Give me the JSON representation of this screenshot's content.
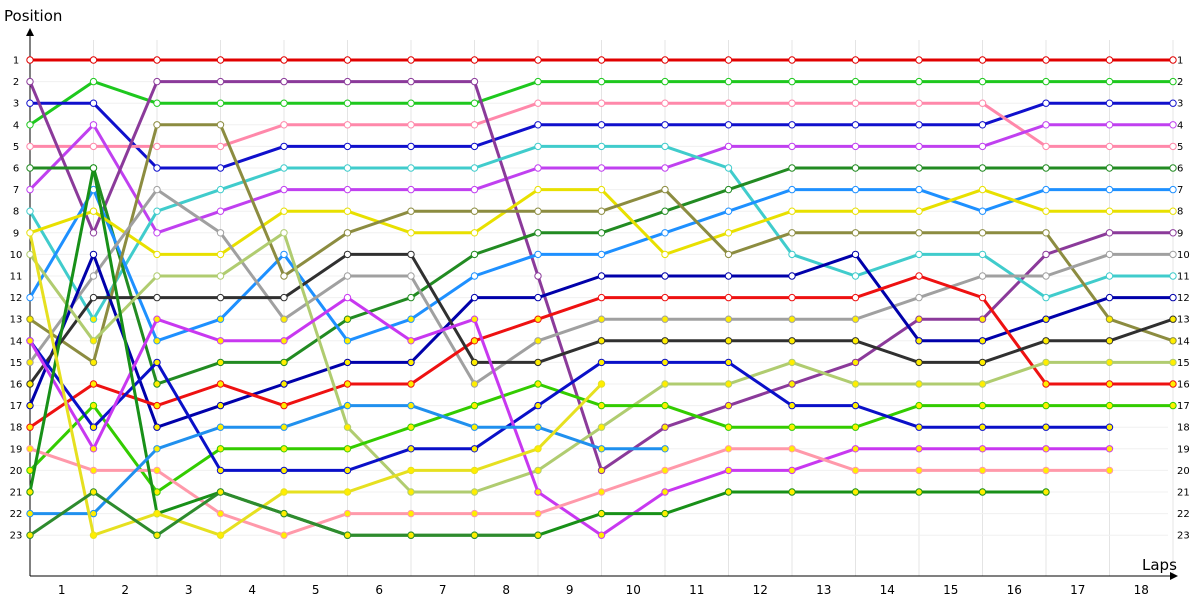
{
  "chart_data": {
    "type": "line",
    "title": "",
    "xlabel": "Laps",
    "ylabel": "Position",
    "x_ticks": [
      "1",
      "2",
      "3",
      "4",
      "5",
      "6",
      "7",
      "8",
      "9",
      "10",
      "11",
      "12",
      "13",
      "14",
      "15",
      "16",
      "17",
      "18"
    ],
    "y_ticks": [
      "1",
      "2",
      "3",
      "4",
      "5",
      "6",
      "7",
      "8",
      "9",
      "10",
      "11",
      "12",
      "13",
      "14",
      "15",
      "16",
      "17",
      "18",
      "19",
      "20",
      "21",
      "22",
      "23"
    ],
    "laps": [
      0,
      1,
      2,
      3,
      4,
      5,
      6,
      7,
      8,
      9,
      10,
      11,
      12,
      13,
      14,
      15,
      16,
      17,
      18
    ],
    "ylim": [
      1,
      23
    ],
    "grid": true,
    "legend": "none",
    "series": [
      {
        "color": "#e10000",
        "positions": [
          1,
          1,
          1,
          1,
          1,
          1,
          1,
          1,
          1,
          1,
          1,
          1,
          1,
          1,
          1,
          1,
          1,
          1,
          1
        ]
      },
      {
        "color": "#1ec81e",
        "positions": [
          4,
          2,
          3,
          3,
          3,
          3,
          3,
          3,
          2,
          2,
          2,
          2,
          2,
          2,
          2,
          2,
          2,
          2,
          2
        ]
      },
      {
        "color": "#1010cc",
        "positions": [
          3,
          3,
          6,
          6,
          5,
          5,
          5,
          5,
          4,
          4,
          4,
          4,
          4,
          4,
          4,
          4,
          3,
          3,
          3
        ]
      },
      {
        "color": "#ff88aa",
        "positions": [
          5,
          5,
          5,
          5,
          4,
          4,
          4,
          4,
          3,
          3,
          3,
          3,
          3,
          3,
          3,
          3,
          5,
          5,
          5
        ]
      },
      {
        "color": "#c040f0",
        "positions": [
          7,
          4,
          9,
          8,
          7,
          7,
          7,
          7,
          6,
          6,
          6,
          5,
          5,
          5,
          5,
          5,
          4,
          4,
          4
        ]
      },
      {
        "color": "#8b3a9a",
        "positions": [
          2,
          9,
          2,
          2,
          2,
          2,
          2,
          2,
          11,
          20,
          18,
          17,
          16,
          15,
          13,
          13,
          10,
          9,
          9
        ]
      },
      {
        "color": "#40cccc",
        "positions": [
          8,
          13,
          8,
          7,
          6,
          6,
          6,
          6,
          5,
          5,
          5,
          6,
          10,
          11,
          10,
          10,
          12,
          11,
          11
        ]
      },
      {
        "color": "#228b22",
        "positions": [
          6,
          6,
          16,
          15,
          15,
          13,
          12,
          10,
          9,
          9,
          8,
          7,
          6,
          6,
          6,
          6,
          6,
          6,
          6
        ]
      },
      {
        "color": "#1e90ff",
        "positions": [
          12,
          7,
          14,
          13,
          10,
          14,
          13,
          11,
          10,
          10,
          9,
          8,
          7,
          7,
          7,
          8,
          7,
          7,
          7
        ]
      },
      {
        "color": "#e8e000",
        "positions": [
          9,
          8,
          10,
          10,
          8,
          8,
          9,
          9,
          7,
          7,
          10,
          9,
          8,
          8,
          8,
          7,
          8,
          8,
          8
        ]
      },
      {
        "color": "#8c8c40",
        "positions": [
          13,
          15,
          4,
          4,
          11,
          9,
          8,
          8,
          8,
          8,
          7,
          10,
          9,
          9,
          9,
          9,
          9,
          13,
          14
        ]
      },
      {
        "color": "#a0a0a0",
        "positions": [
          15,
          11,
          7,
          9,
          13,
          11,
          11,
          16,
          14,
          13,
          13,
          13,
          13,
          13,
          12,
          11,
          11,
          10,
          10
        ]
      },
      {
        "color": "#0000aa",
        "positions": [
          17,
          10,
          18,
          17,
          16,
          15,
          15,
          12,
          12,
          11,
          11,
          11,
          11,
          10,
          14,
          14,
          13,
          12,
          12
        ]
      },
      {
        "color": "#ee1111",
        "positions": [
          18,
          16,
          17,
          16,
          17,
          16,
          16,
          14,
          13,
          12,
          12,
          12,
          12,
          12,
          11,
          12,
          16,
          16,
          16
        ]
      },
      {
        "color": "#303030",
        "positions": [
          16,
          12,
          12,
          12,
          12,
          10,
          10,
          15,
          15,
          14,
          14,
          14,
          14,
          14,
          15,
          15,
          14,
          14,
          13
        ]
      },
      {
        "color": "#b0cc70",
        "positions": [
          10,
          14,
          11,
          11,
          9,
          18,
          21,
          21,
          20,
          18,
          16,
          16,
          15,
          16,
          16,
          16,
          15,
          15,
          15
        ]
      },
      {
        "color": "#33cc00",
        "positions": [
          20,
          17,
          21,
          19,
          19,
          19,
          18,
          17,
          16,
          17,
          17,
          18,
          18,
          18,
          17,
          17,
          17,
          17,
          17
        ]
      },
      {
        "color": "#0a10c8",
        "positions": [
          14,
          18,
          15,
          20,
          20,
          20,
          19,
          19,
          17,
          15,
          15,
          15,
          17,
          17,
          18,
          18,
          18,
          18
        ]
      },
      {
        "color": "#c838f0",
        "positions": [
          14,
          19,
          13,
          14,
          14,
          12,
          14,
          13,
          21,
          23,
          21,
          20,
          20,
          19,
          19,
          19,
          19,
          19
        ]
      },
      {
        "color": "#ff99aa",
        "positions": [
          19,
          20,
          20,
          22,
          23,
          22,
          22,
          22,
          22,
          21,
          20,
          19,
          19,
          20,
          20,
          20,
          20,
          20
        ]
      },
      {
        "color": "#189018",
        "positions": [
          21,
          6,
          22,
          21,
          22,
          23,
          23,
          23,
          23,
          22,
          22,
          21,
          21,
          21,
          21,
          21,
          21
        ]
      },
      {
        "color": "#2090ee",
        "positions": [
          22,
          22,
          19,
          18,
          18,
          17,
          17,
          18,
          18,
          19,
          19
        ]
      },
      {
        "color": "#e6e020",
        "positions": [
          9,
          23,
          22,
          23,
          21,
          21,
          20,
          20,
          19,
          16
        ]
      },
      {
        "color": "#2e8b2e",
        "positions": [
          23,
          21,
          23,
          21,
          22,
          23,
          23,
          23,
          23
        ]
      }
    ]
  }
}
